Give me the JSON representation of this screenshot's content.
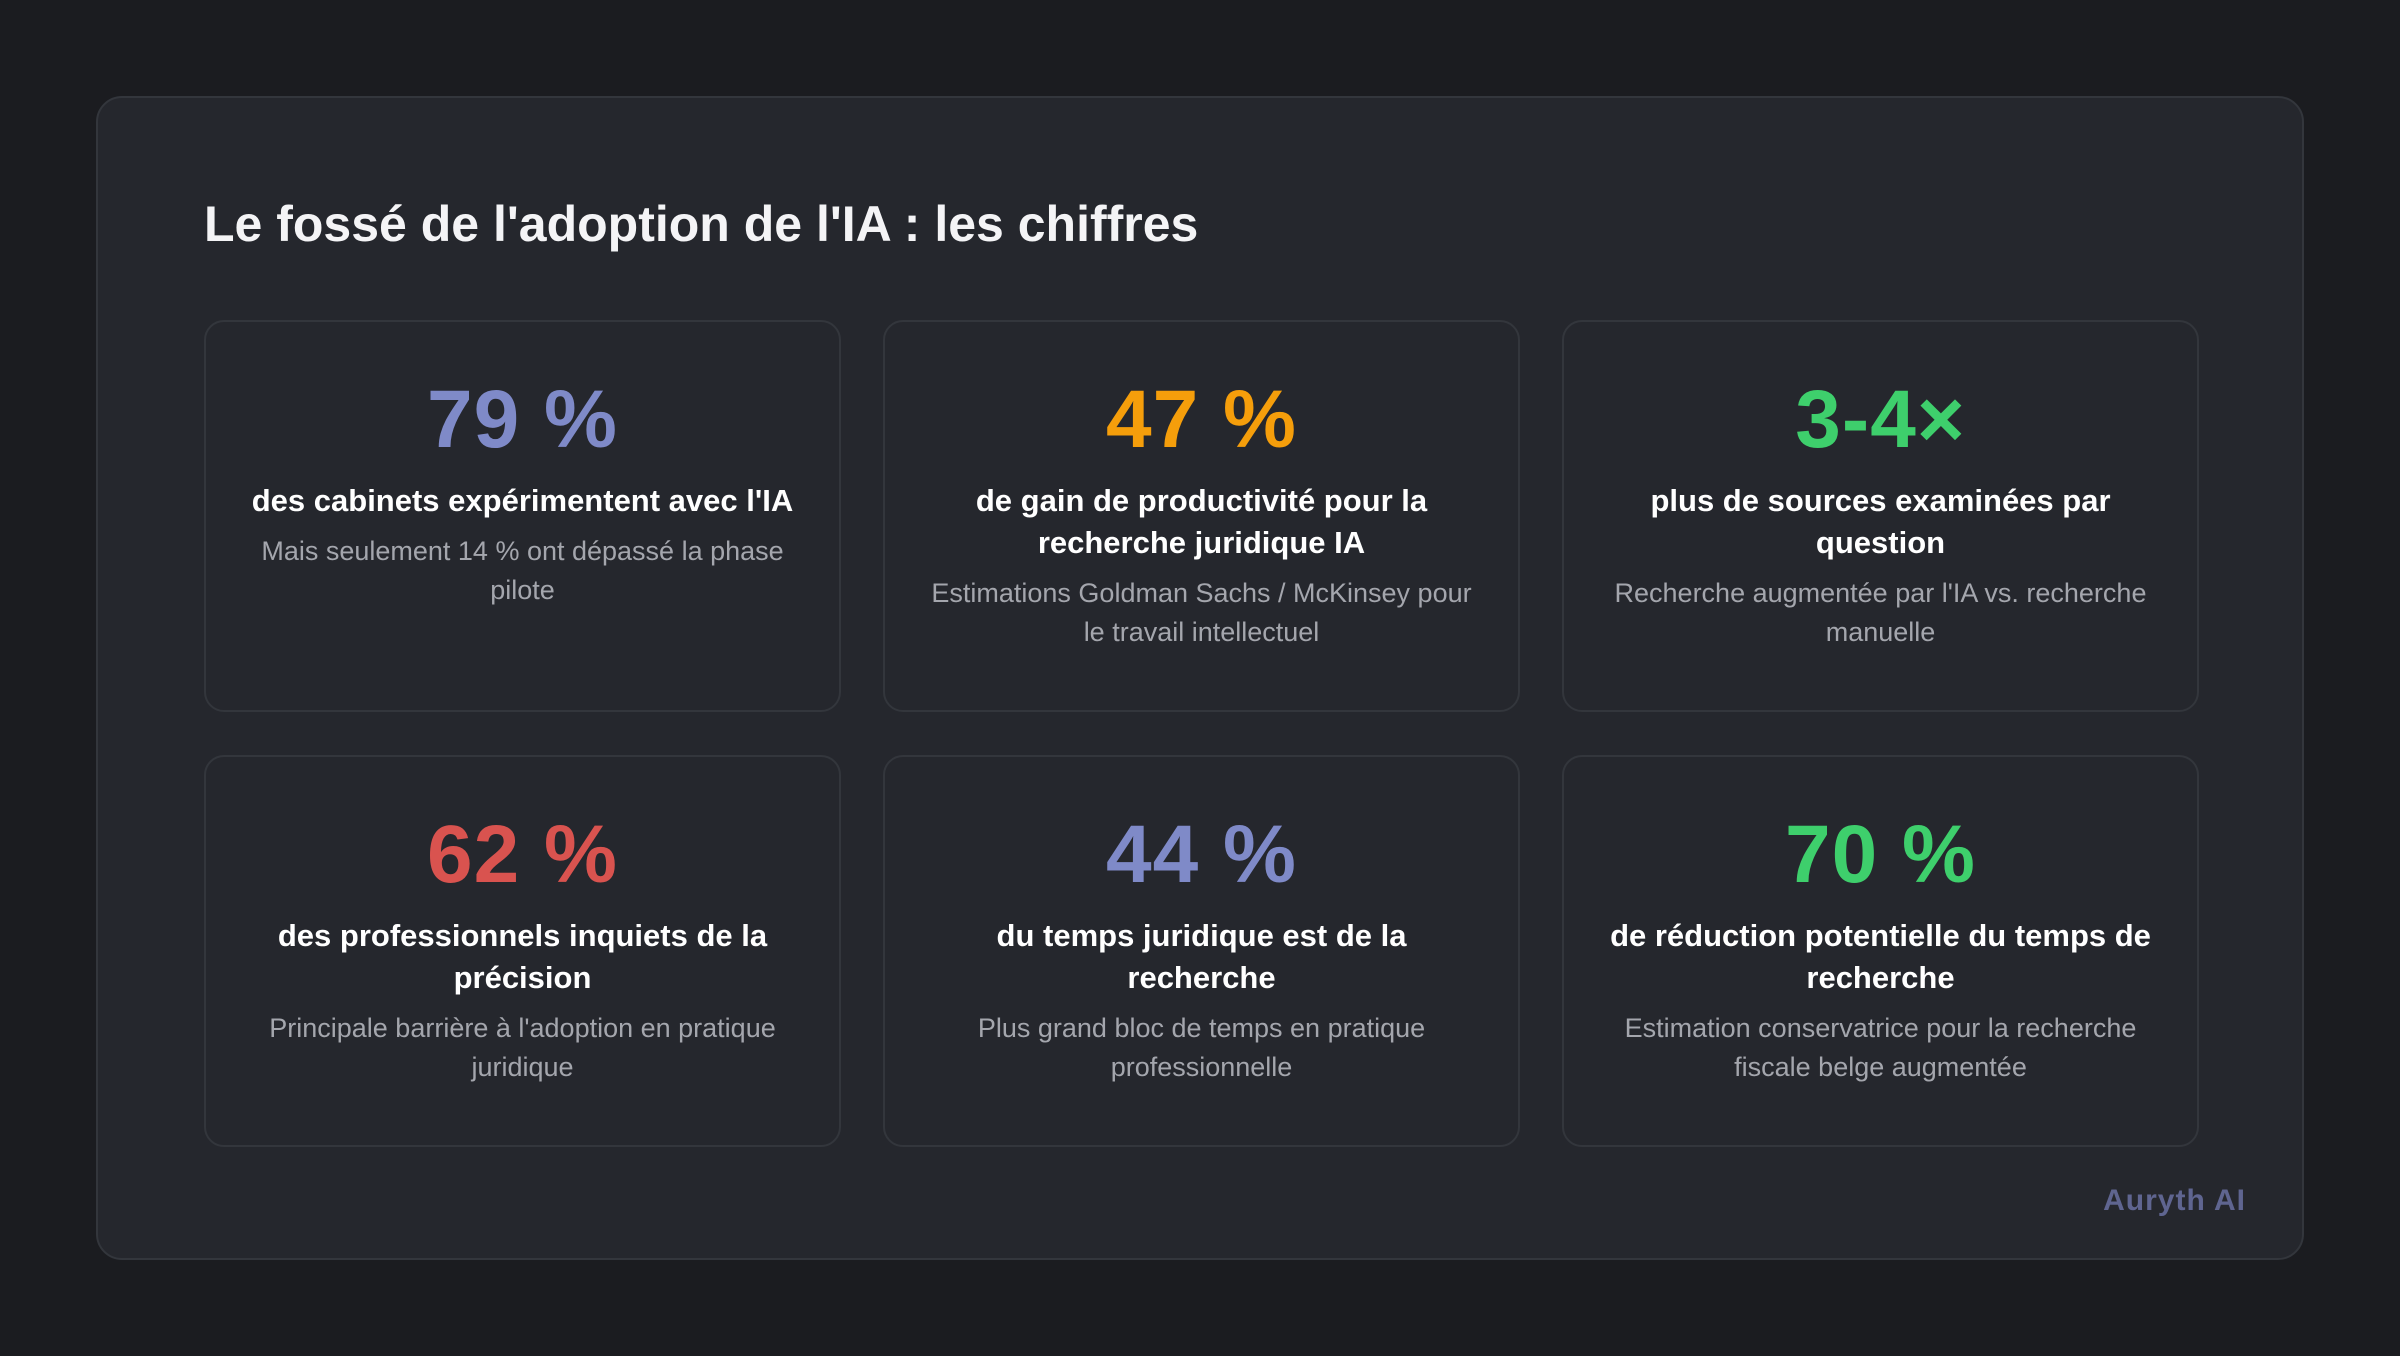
{
  "title": "Le fossé de l'adoption de l'IA : les chiffres",
  "stats": [
    {
      "value": "79 %",
      "label": "des cabinets expérimentent avec l'IA",
      "sub": "Mais seulement 14 % ont dépassé la phase pilote",
      "color": "#7f8ac8"
    },
    {
      "value": "47 %",
      "label": "de gain de productivité pour la recherche juridique IA",
      "sub": "Estimations Goldman Sachs / McKinsey pour le travail intellectuel",
      "color": "#f59e0b"
    },
    {
      "value": "3-4×",
      "label": "plus de sources examinées par question",
      "sub": "Recherche augmentée par l'IA vs. recherche manuelle",
      "color": "#3ecf6c"
    },
    {
      "value": "62 %",
      "label": "des professionnels inquiets de la précision",
      "sub": "Principale barrière à l'adoption en pratique juridique",
      "color": "#d9534f"
    },
    {
      "value": "44 %",
      "label": "du temps juridique est de la recherche",
      "sub": "Plus grand bloc de temps en pratique professionnelle",
      "color": "#7f8ac8"
    },
    {
      "value": "70 %",
      "label": "de réduction potentielle du temps de recherche",
      "sub": "Estimation conservatrice pour la recherche fiscale belge augmentée",
      "color": "#3ecf6c"
    }
  ],
  "brand": "Auryth AI"
}
